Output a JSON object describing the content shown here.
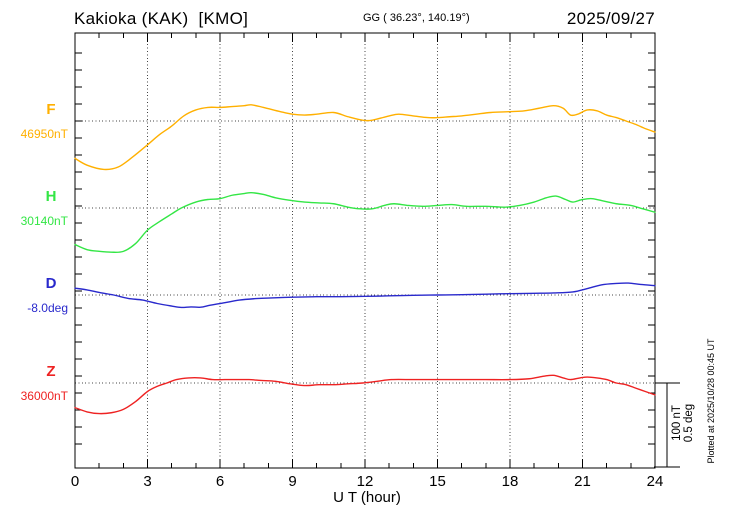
{
  "header": {
    "station": "Kakioka (KAK)  [KMO]",
    "coords": "GG ( 36.23°, 140.19°)",
    "date": "2025/09/27"
  },
  "footer": {
    "plotted_at": "Plotted at 2025/10/28 00:45 UT"
  },
  "chart_data": {
    "type": "line",
    "title": "Kakioka (KAK) [KMO] magnetogram",
    "xlabel": "U T (hour)",
    "x_range": [
      0,
      24
    ],
    "x_ticks": [
      "0",
      "3",
      "6",
      "9",
      "12",
      "15",
      "18",
      "21",
      "24"
    ],
    "x_tick_hours": [
      0,
      3,
      6,
      9,
      12,
      15,
      18,
      21,
      24
    ],
    "grid_hours": [
      3,
      6,
      9,
      12,
      15,
      18,
      21
    ],
    "grid": "dotted",
    "frame_color": "#000000",
    "grid_color": "#444444",
    "scale_bar": {
      "label_nT": "100 nT",
      "label_deg": "0.5 deg",
      "nT": 100,
      "deg": 0.5
    },
    "series": [
      {
        "name": "F",
        "unit": "nT",
        "baseline_value": 46950,
        "baseline_label": "46950nT",
        "color": "#FFB000",
        "per_bar": 100,
        "points": [
          [
            0,
            46906
          ],
          [
            0.5,
            46898
          ],
          [
            1.2,
            46893
          ],
          [
            1.8,
            46896
          ],
          [
            2.4,
            46908
          ],
          [
            3,
            46922
          ],
          [
            3.5,
            46934
          ],
          [
            4,
            46944
          ],
          [
            4.5,
            46956
          ],
          [
            5,
            46963
          ],
          [
            5.5,
            46966
          ],
          [
            6,
            46966
          ],
          [
            6.5,
            46967
          ],
          [
            7,
            46968
          ],
          [
            7.3,
            46969
          ],
          [
            7.8,
            46966
          ],
          [
            8.5,
            46961
          ],
          [
            9,
            46958
          ],
          [
            9.5,
            46957
          ],
          [
            10,
            46958
          ],
          [
            10.7,
            46960
          ],
          [
            11.3,
            46955
          ],
          [
            11.9,
            46951
          ],
          [
            12.3,
            46951
          ],
          [
            13,
            46956
          ],
          [
            13.4,
            46958
          ],
          [
            14,
            46956
          ],
          [
            14.6,
            46954
          ],
          [
            15,
            46954
          ],
          [
            15.5,
            46955
          ],
          [
            16,
            46956
          ],
          [
            16.6,
            46958
          ],
          [
            17.2,
            46960
          ],
          [
            18,
            46961
          ],
          [
            18.6,
            46962
          ],
          [
            19.2,
            46965
          ],
          [
            19.8,
            46968
          ],
          [
            20.2,
            46965
          ],
          [
            20.5,
            46957
          ],
          [
            20.8,
            46958
          ],
          [
            21.2,
            46963
          ],
          [
            21.6,
            46962
          ],
          [
            22,
            46957
          ],
          [
            22.4,
            46954
          ],
          [
            22.8,
            46950
          ],
          [
            23.2,
            46946
          ],
          [
            23.6,
            46941
          ],
          [
            24,
            46937
          ]
        ]
      },
      {
        "name": "H",
        "unit": "nT",
        "baseline_value": 30140,
        "baseline_label": "30140nT",
        "color": "#33E645",
        "per_bar": 100,
        "points": [
          [
            0,
            30097
          ],
          [
            0.5,
            30091
          ],
          [
            1,
            30089
          ],
          [
            1.5,
            30088
          ],
          [
            2,
            30089
          ],
          [
            2.5,
            30098
          ],
          [
            3,
            30114
          ],
          [
            3.5,
            30124
          ],
          [
            4,
            30133
          ],
          [
            4.4,
            30140
          ],
          [
            5,
            30147
          ],
          [
            5.5,
            30150
          ],
          [
            6,
            30151
          ],
          [
            6.5,
            30155
          ],
          [
            7,
            30157
          ],
          [
            7.3,
            30158
          ],
          [
            7.8,
            30156
          ],
          [
            8.3,
            30152
          ],
          [
            8.9,
            30149
          ],
          [
            9.5,
            30147
          ],
          [
            10.1,
            30146
          ],
          [
            10.7,
            30145
          ],
          [
            11.3,
            30141
          ],
          [
            11.8,
            30139
          ],
          [
            12.3,
            30139
          ],
          [
            12.8,
            30143
          ],
          [
            13.2,
            30145
          ],
          [
            13.8,
            30143
          ],
          [
            14.4,
            30142
          ],
          [
            15,
            30143
          ],
          [
            15.6,
            30144
          ],
          [
            16.2,
            30142
          ],
          [
            17,
            30142
          ],
          [
            17.8,
            30141
          ],
          [
            18.4,
            30143
          ],
          [
            19,
            30147
          ],
          [
            19.5,
            30152
          ],
          [
            19.9,
            30154
          ],
          [
            20.3,
            30150
          ],
          [
            20.6,
            30147
          ],
          [
            21,
            30150
          ],
          [
            21.4,
            30151
          ],
          [
            21.9,
            30148
          ],
          [
            22.4,
            30145
          ],
          [
            23,
            30143
          ],
          [
            23.5,
            30139
          ],
          [
            24,
            30135
          ]
        ]
      },
      {
        "name": "D",
        "unit": "deg",
        "baseline_value": -8.0,
        "baseline_label": "-8.0deg",
        "color": "#2929CC",
        "per_bar": 0.5,
        "points": [
          [
            0,
            -7.96
          ],
          [
            0.5,
            -7.97
          ],
          [
            1,
            -7.985
          ],
          [
            1.6,
            -8.0
          ],
          [
            2.2,
            -8.02
          ],
          [
            2.8,
            -8.03
          ],
          [
            3.4,
            -8.05
          ],
          [
            4,
            -8.065
          ],
          [
            4.4,
            -8.073
          ],
          [
            4.8,
            -8.07
          ],
          [
            5.2,
            -8.072
          ],
          [
            5.6,
            -8.06
          ],
          [
            6.2,
            -8.045
          ],
          [
            6.8,
            -8.03
          ],
          [
            7.4,
            -8.022
          ],
          [
            8,
            -8.018
          ],
          [
            9,
            -8.013
          ],
          [
            10,
            -8.01
          ],
          [
            11,
            -8.01
          ],
          [
            12,
            -8.008
          ],
          [
            13,
            -8.005
          ],
          [
            14,
            -8.002
          ],
          [
            15,
            -8.0
          ],
          [
            16,
            -7.998
          ],
          [
            17,
            -7.995
          ],
          [
            18,
            -7.992
          ],
          [
            19,
            -7.99
          ],
          [
            19.8,
            -7.988
          ],
          [
            20.6,
            -7.982
          ],
          [
            21.2,
            -7.962
          ],
          [
            21.8,
            -7.94
          ],
          [
            22.4,
            -7.932
          ],
          [
            22.9,
            -7.93
          ],
          [
            23.4,
            -7.938
          ],
          [
            24,
            -7.945
          ]
        ]
      },
      {
        "name": "Z",
        "unit": "nT",
        "baseline_value": 36000,
        "baseline_label": "36000nT",
        "color": "#EE2222",
        "per_bar": 100,
        "points": [
          [
            0,
            35971
          ],
          [
            0.5,
            35966
          ],
          [
            1,
            35964
          ],
          [
            1.5,
            35965
          ],
          [
            2,
            35969
          ],
          [
            2.5,
            35978
          ],
          [
            3,
            35990
          ],
          [
            3.4,
            35996
          ],
          [
            3.8,
            36000
          ],
          [
            4.2,
            36004
          ],
          [
            4.7,
            36006
          ],
          [
            5.2,
            36006
          ],
          [
            5.7,
            36004
          ],
          [
            6.2,
            36004
          ],
          [
            6.7,
            36004
          ],
          [
            7.2,
            36004
          ],
          [
            7.7,
            36003
          ],
          [
            8.3,
            36002
          ],
          [
            8.9,
            35999
          ],
          [
            9.5,
            35997
          ],
          [
            10.1,
            35998
          ],
          [
            10.7,
            35998
          ],
          [
            11.3,
            35999
          ],
          [
            11.9,
            36000
          ],
          [
            12.5,
            36002
          ],
          [
            13.1,
            36004
          ],
          [
            14,
            36004
          ],
          [
            15,
            36004
          ],
          [
            16,
            36004
          ],
          [
            17,
            36004
          ],
          [
            18,
            36004
          ],
          [
            18.8,
            36005
          ],
          [
            19.4,
            36008
          ],
          [
            19.8,
            36009
          ],
          [
            20.2,
            36006
          ],
          [
            20.5,
            36004
          ],
          [
            20.9,
            36006
          ],
          [
            21.2,
            36007
          ],
          [
            21.6,
            36006
          ],
          [
            22,
            36004
          ],
          [
            22.4,
            36000
          ],
          [
            22.8,
            35998
          ],
          [
            23.2,
            35994
          ],
          [
            23.6,
            35990
          ],
          [
            24,
            35986
          ]
        ]
      }
    ]
  }
}
